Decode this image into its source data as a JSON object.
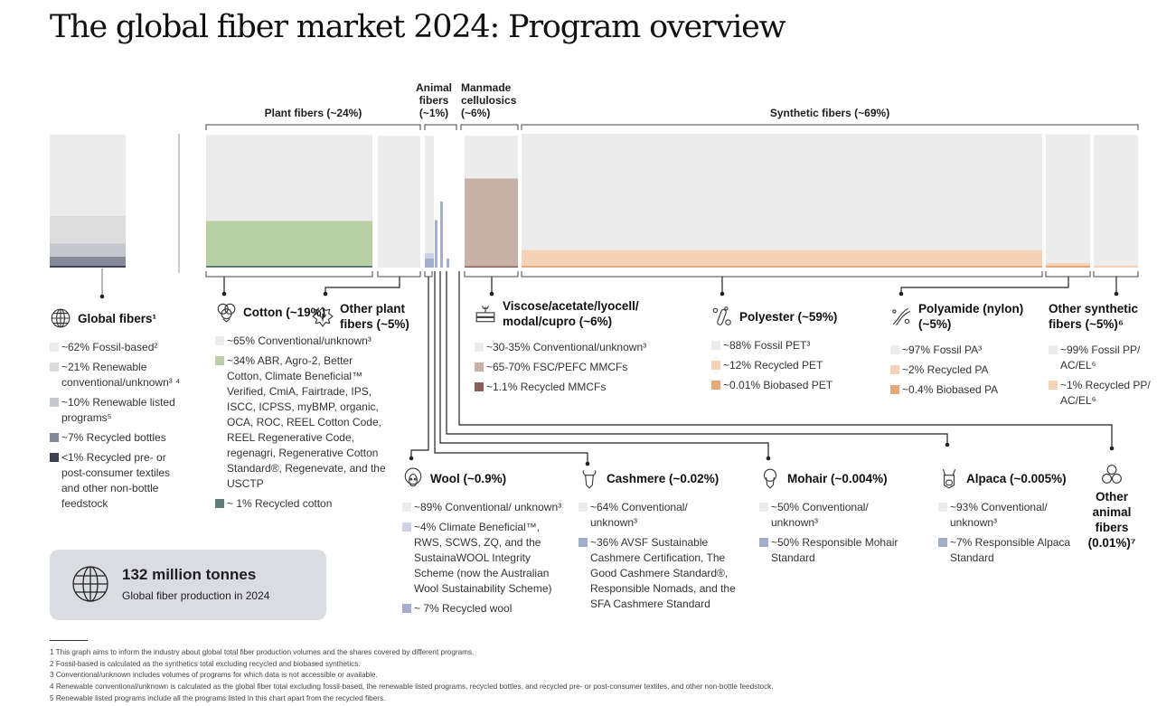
{
  "title": "The global fiber market 2024: Program overview",
  "groups": {
    "plant": "Plant fibers (~24%)",
    "animal": [
      "Animal",
      "fibers",
      "(~1%)"
    ],
    "manmade": [
      "Manmade",
      "cellulosics",
      "(~6%)"
    ],
    "synthetic": "Synthetic fibers (~69%)"
  },
  "legends": [
    {
      "id": "global",
      "icon": "globe-icon",
      "title": "Global fibers¹",
      "items": [
        {
          "text": "~62% Fossil-based²",
          "color": "#ececec"
        },
        {
          "text": "~21% Renewable conventional/unknown³ ⁴",
          "color": "#dcdcdc"
        },
        {
          "text": "~10% Renewable listed programs⁵",
          "color": "#c5c7cf"
        },
        {
          "text": "~7% Recycled bottles",
          "color": "#868a98"
        },
        {
          "text": "<1% Recycled pre- or post-consumer textiles and other non-bottle feedstock",
          "color": "#3d4250"
        }
      ]
    },
    {
      "id": "cotton",
      "icon": "cotton-icon",
      "title": "Cotton (~19%)",
      "items": [
        {
          "text": "~65% Conventional/unknown³",
          "color": "#ececec"
        },
        {
          "text": "~34% ABR, Agro-2, Better Cotton, Climate Beneficial™ Verified, CmiA, Fairtrade, IPS, ISCC, ICPSS, myBMP, organic, OCA, ROC, REEL Cotton Code, REEL Regenerative Code, regenagri, Regenerative Cotton Standard®, Regenevate, and the USCTP",
          "color": "#b8d0a4"
        },
        {
          "text": "~ 1% Recycled cotton",
          "color": "#5d7d78"
        }
      ]
    },
    {
      "id": "otherplant",
      "icon": "plant-icon",
      "title": "Other plant fibers (~5%)",
      "items": []
    },
    {
      "id": "mmcf",
      "icon": "wood-icon",
      "title": "Viscose/acetate/lyocell/ modal/cupro (~6%)",
      "items": [
        {
          "text": "~30-35% Conventional/unknown³",
          "color": "#ececec"
        },
        {
          "text": "~65-70% FSC/PEFC MMCFs",
          "color": "#c9b1a8"
        },
        {
          "text": "~1.1% Recycled MMCFs",
          "color": "#8a5f55"
        }
      ]
    },
    {
      "id": "polyester",
      "icon": "test-tube-icon",
      "title": "Polyester (~59%)",
      "items": [
        {
          "text": "~88% Fossil PET³",
          "color": "#ececec"
        },
        {
          "text": "~12% Recycled PET",
          "color": "#f6d3b8"
        },
        {
          "text": "~0.01% Biobased PET",
          "color": "#e5a878"
        }
      ]
    },
    {
      "id": "polyamide",
      "icon": "fiber-icon",
      "title": "Polyamide (nylon) (~5%)",
      "items": [
        {
          "text": "~97% Fossil PA³",
          "color": "#ececec"
        },
        {
          "text": "~2% Recycled PA",
          "color": "#f6d3b8"
        },
        {
          "text": "~0.4% Biobased PA",
          "color": "#e5a878"
        }
      ]
    },
    {
      "id": "othersyn",
      "icon": "",
      "title": "Other synthetic fibers (~5%)⁶",
      "items": [
        {
          "text": "~99% Fossil PP/ AC/EL⁶",
          "color": "#ececec"
        },
        {
          "text": "~1% Recycled PP/ AC/EL⁶",
          "color": "#f6d3b8"
        }
      ]
    },
    {
      "id": "wool",
      "icon": "sheep-icon",
      "title": "Wool (~0.9%)",
      "items": [
        {
          "text": "~89% Conventional/ unknown³",
          "color": "#ececec"
        },
        {
          "text": "~4% Climate Beneficial™, RWS, SCWS, ZQ, and the SustainaWOOL Integrity Scheme (now the Australian Wool Sustainability Scheme)",
          "color": "#cdd2e4"
        },
        {
          "text": "~ 7% Recycled wool",
          "color": "#a4afd0"
        }
      ]
    },
    {
      "id": "cashmere",
      "icon": "goat-icon",
      "title": "Cashmere (~0.02%)",
      "items": [
        {
          "text": "~64% Conventional/ unknown³",
          "color": "#ececec"
        },
        {
          "text": "~36% AVSF Sustainable Cashmere Certification, The Good Cashmere Standard®, Responsible Nomads, and the SFA Cashmere Standard",
          "color": "#a4afd0"
        }
      ]
    },
    {
      "id": "mohair",
      "icon": "angora-goat-icon",
      "title": "Mohair (~0.004%)",
      "items": [
        {
          "text": "~50% Conventional/ unknown³",
          "color": "#ececec"
        },
        {
          "text": "~50% Responsible Mohair Standard",
          "color": "#a4afd0"
        }
      ]
    },
    {
      "id": "alpaca",
      "icon": "alpaca-icon",
      "title": "Alpaca (~0.005%)",
      "items": [
        {
          "text": "~93% Conventional/ unknown³",
          "color": "#ececec"
        },
        {
          "text": "~7% Responsible Alpaca Standard",
          "color": "#a4afd0"
        }
      ]
    },
    {
      "id": "otheranimal",
      "icon": "yarn-balls-icon",
      "title": "Other animal fibers (0.01%)⁷",
      "items": []
    }
  ],
  "total": {
    "value": "132 million tonnes",
    "label": "Global fiber production in 2024"
  },
  "footnotes": [
    "1 This graph aims to inform the industry about global total fiber production volumes and the shares covered by different programs.",
    "2 Fossil-based is calculated as the synthetics total excluding recycled and biobased synthetics.",
    "3 Conventional/unknown includes volumes of programs for which data is not accessible or available.",
    "4 Renewable conventional/unknown is calculated as the global fiber total excluding fossil-based, the renewable listed programs, recycled bottles, and recycled pre- or post-consumer textiles, and other non-bottle feedstock.",
    "5 Renewable listed programs include all the programs listed in this chart apart from the recycled fibers."
  ],
  "chart_data": {
    "type": "bar",
    "stacked": true,
    "title": "The global fiber market 2024: Program overview",
    "unit": "% share of category",
    "bars": [
      {
        "name": "Global fibers",
        "segments": [
          62,
          21,
          10,
          7,
          0.5
        ],
        "colors": [
          "#ececec",
          "#dcdcdc",
          "#c5c7cf",
          "#868a98",
          "#3d4250"
        ]
      },
      {
        "name": "Cotton",
        "segments": [
          65,
          34,
          1
        ],
        "colors": [
          "#ececec",
          "#b8d0a4",
          "#5d7d78"
        ]
      },
      {
        "name": "Other plant fibers",
        "segments": [
          100
        ],
        "colors": [
          "#ececec"
        ]
      },
      {
        "name": "Wool",
        "segments": [
          89,
          4,
          7
        ],
        "colors": [
          "#ececec",
          "#cdd2e4",
          "#a4afd0"
        ]
      },
      {
        "name": "Cashmere",
        "segments": [
          64,
          36
        ],
        "colors": [
          "#ffffff",
          "#a4afd0"
        ]
      },
      {
        "name": "Mohair",
        "segments": [
          50,
          50
        ],
        "colors": [
          "#ffffff",
          "#a4afd0"
        ]
      },
      {
        "name": "Alpaca",
        "segments": [
          93,
          7
        ],
        "colors": [
          "#ffffff",
          "#a4afd0"
        ]
      },
      {
        "name": "Manmade cellulosics",
        "segments": [
          32.5,
          66.5,
          1.1
        ],
        "colors": [
          "#ececec",
          "#c9b1a8",
          "#8a5f55"
        ]
      },
      {
        "name": "Polyester",
        "segments": [
          88,
          12,
          0.01
        ],
        "colors": [
          "#ececec",
          "#f6d3b8",
          "#e5a878"
        ]
      },
      {
        "name": "Polyamide",
        "segments": [
          97,
          2,
          0.4
        ],
        "colors": [
          "#ececec",
          "#f6d3b8",
          "#e5a878"
        ]
      },
      {
        "name": "Other synthetic fibers",
        "segments": [
          99,
          1
        ],
        "colors": [
          "#ececec",
          "#f6d3b8"
        ]
      }
    ]
  }
}
